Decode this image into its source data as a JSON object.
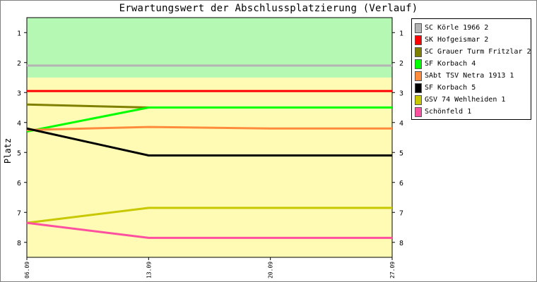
{
  "chart_data": {
    "type": "line",
    "title": "Erwartungswert der Abschlussplatzierung (Verlauf)",
    "ylabel": "Platz",
    "xlabel": "",
    "x": [
      "06.09",
      "13.09",
      "20.09",
      "27.09"
    ],
    "yticks": [
      1,
      2,
      3,
      4,
      5,
      6,
      7,
      8
    ],
    "ylim": [
      0.5,
      8.5
    ],
    "y_inverted": true,
    "grid": false,
    "legend_position": "right",
    "bands": [
      {
        "from": 0.5,
        "to": 2.5,
        "color": "#b4f8b4"
      },
      {
        "from": 2.5,
        "to": 8.5,
        "color": "#fffbb4"
      }
    ],
    "series": [
      {
        "name": "SC Körle 1966 2",
        "color": "#b4b4b4",
        "values": [
          2.1,
          2.1,
          2.1,
          2.1
        ]
      },
      {
        "name": "SK Hofgeismar 2",
        "color": "#ff0000",
        "values": [
          2.95,
          2.95,
          2.95,
          2.95
        ]
      },
      {
        "name": "SC Grauer Turm Fritzlar 2",
        "color": "#808000",
        "values": [
          3.4,
          3.5,
          3.5,
          3.5
        ]
      },
      {
        "name": "SF Korbach 4",
        "color": "#00ff00",
        "values": [
          4.3,
          3.5,
          3.5,
          3.5
        ]
      },
      {
        "name": "SAbt TSV Netra 1913 1",
        "color": "#ff8c3c",
        "values": [
          4.25,
          4.15,
          4.2,
          4.2
        ]
      },
      {
        "name": "SF Korbach 5",
        "color": "#000000",
        "values": [
          4.2,
          5.1,
          5.1,
          5.1
        ]
      },
      {
        "name": "GSV 74 Wehlheiden 1",
        "color": "#c8c800",
        "values": [
          7.35,
          6.85,
          6.85,
          6.85
        ]
      },
      {
        "name": "Schönfeld 1",
        "color": "#ff50a0",
        "values": [
          7.35,
          7.85,
          7.85,
          7.85
        ]
      }
    ]
  }
}
